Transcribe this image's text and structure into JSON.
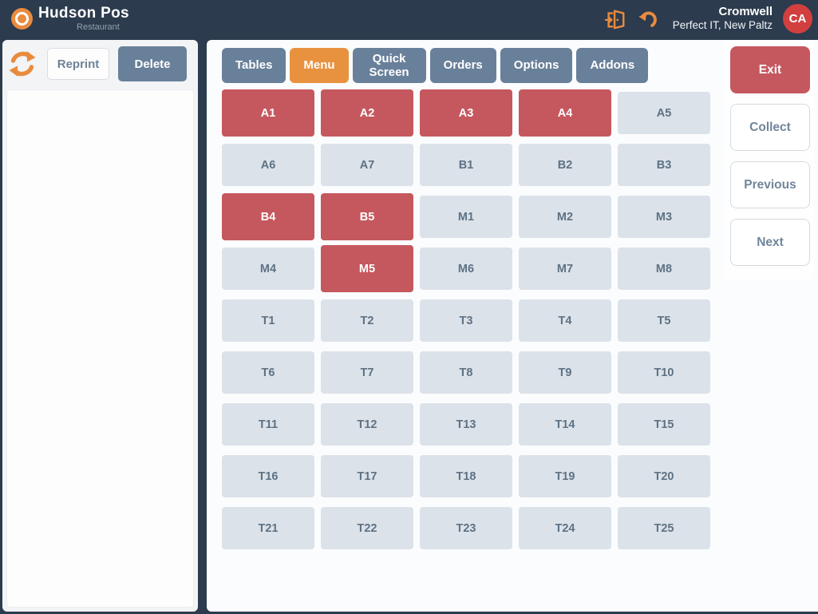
{
  "topbar": {
    "brand": {
      "name": "Hudson Pos",
      "subtitle": "Restaurant"
    },
    "icons": {
      "logout": "logout-door-icon",
      "undo": "undo-icon",
      "refresh": "refresh-icon"
    },
    "user": {
      "name": "Cromwell",
      "org": "Perfect IT, New Paltz",
      "avatar_initials": "CA"
    }
  },
  "left_panel": {
    "reprint_label": "Reprint",
    "delete_label": "Delete"
  },
  "tabs": [
    {
      "label": "Tables",
      "active": false
    },
    {
      "label": "Menu",
      "active": true
    },
    {
      "label": "Quick Screen",
      "active": false
    },
    {
      "label": "Orders",
      "active": false
    },
    {
      "label": "Options",
      "active": false
    },
    {
      "label": "Addons",
      "active": false
    }
  ],
  "table_grid": {
    "columns": 5,
    "tables": [
      {
        "label": "A1",
        "state": "selected"
      },
      {
        "label": "A2",
        "state": "selected"
      },
      {
        "label": "A3",
        "state": "selected"
      },
      {
        "label": "A4",
        "state": "selected"
      },
      {
        "label": "A5",
        "state": "normal"
      },
      {
        "label": "A6",
        "state": "normal"
      },
      {
        "label": "A7",
        "state": "normal"
      },
      {
        "label": "B1",
        "state": "normal"
      },
      {
        "label": "B2",
        "state": "normal"
      },
      {
        "label": "B3",
        "state": "normal"
      },
      {
        "label": "B4",
        "state": "selected"
      },
      {
        "label": "B5",
        "state": "selected"
      },
      {
        "label": "M1",
        "state": "normal"
      },
      {
        "label": "M2",
        "state": "normal"
      },
      {
        "label": "M3",
        "state": "normal"
      },
      {
        "label": "M4",
        "state": "normal"
      },
      {
        "label": "M5",
        "state": "selected"
      },
      {
        "label": "M6",
        "state": "normal"
      },
      {
        "label": "M7",
        "state": "normal"
      },
      {
        "label": "M8",
        "state": "normal"
      },
      {
        "label": "T1",
        "state": "normal"
      },
      {
        "label": "T2",
        "state": "normal"
      },
      {
        "label": "T3",
        "state": "normal"
      },
      {
        "label": "T4",
        "state": "normal"
      },
      {
        "label": "T5",
        "state": "normal"
      },
      {
        "label": "T6",
        "state": "normal"
      },
      {
        "label": "T7",
        "state": "normal"
      },
      {
        "label": "T8",
        "state": "normal"
      },
      {
        "label": "T9",
        "state": "normal"
      },
      {
        "label": "T10",
        "state": "normal"
      },
      {
        "label": "T11",
        "state": "normal"
      },
      {
        "label": "T12",
        "state": "normal"
      },
      {
        "label": "T13",
        "state": "normal"
      },
      {
        "label": "T14",
        "state": "normal"
      },
      {
        "label": "T15",
        "state": "normal"
      },
      {
        "label": "T16",
        "state": "normal"
      },
      {
        "label": "T17",
        "state": "normal"
      },
      {
        "label": "T18",
        "state": "normal"
      },
      {
        "label": "T19",
        "state": "normal"
      },
      {
        "label": "T20",
        "state": "normal"
      },
      {
        "label": "T21",
        "state": "normal"
      },
      {
        "label": "T22",
        "state": "normal"
      },
      {
        "label": "T23",
        "state": "normal"
      },
      {
        "label": "T24",
        "state": "normal"
      },
      {
        "label": "T25",
        "state": "normal"
      }
    ]
  },
  "right_panel": {
    "buttons": [
      {
        "label": "Exit",
        "style": "danger"
      },
      {
        "label": "Collect",
        "style": "default"
      },
      {
        "label": "Previous",
        "style": "default"
      },
      {
        "label": "Next",
        "style": "default"
      }
    ]
  },
  "colors": {
    "topbar_bg": "#2c3b4d",
    "accent_orange": "#e8923f",
    "slate": "#69809a",
    "selected_red": "#c5585e",
    "table_bg": "#dce2e9",
    "table_text": "#5d7285",
    "avatar_red": "#d23f3f"
  }
}
